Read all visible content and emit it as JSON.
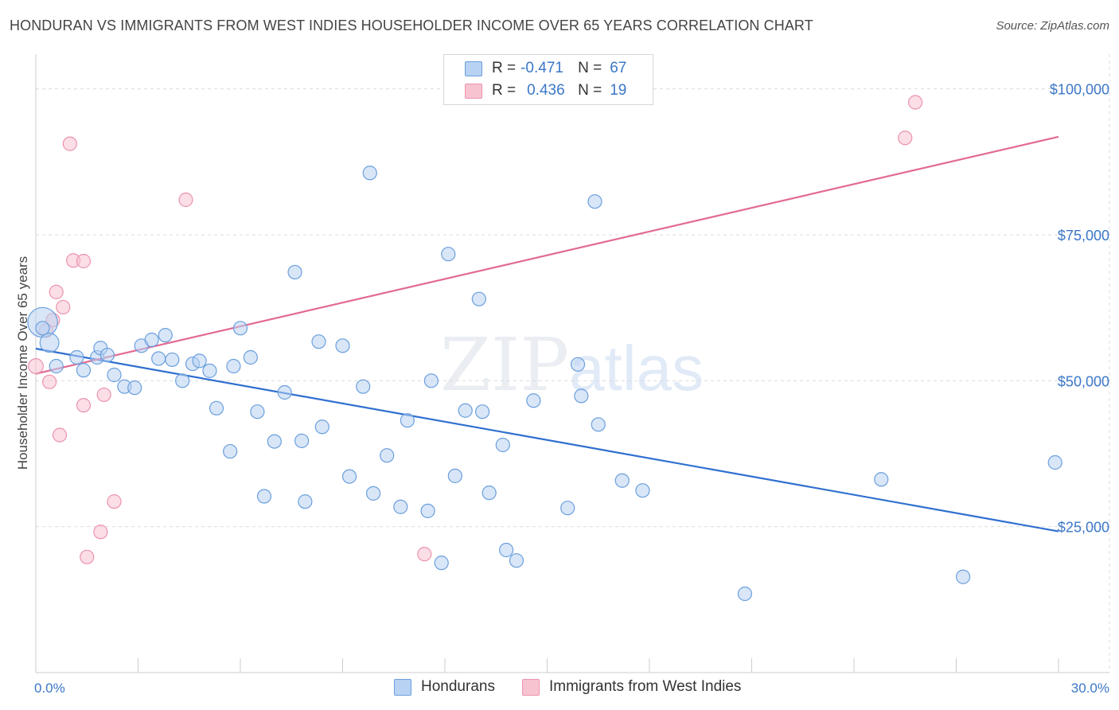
{
  "header": {
    "title": "HONDURAN VS IMMIGRANTS FROM WEST INDIES HOUSEHOLDER INCOME OVER 65 YEARS CORRELATION CHART",
    "source": "Source: ZipAtlas.com"
  },
  "watermark": {
    "zip": "ZIP",
    "atlas": "atlas"
  },
  "legend": {
    "r_label": "R =",
    "n_label": "N =",
    "rows": [
      {
        "r": "-0.471",
        "n": "67"
      },
      {
        "r": "0.436",
        "n": "19"
      }
    ]
  },
  "colors": {
    "hondurans_fill": "#b8d2f3",
    "hondurans_stroke": "#6b9fdc",
    "hondurans_line": "#2f6fd0",
    "westindies_fill": "#f7c3d1",
    "westindies_stroke": "#ec93ae",
    "westindies_line": "#e26a93",
    "tick_text": "#3b77c8"
  },
  "chart_data": {
    "type": "scatter",
    "title": "HONDURAN VS IMMIGRANTS FROM WEST INDIES HOUSEHOLDER INCOME OVER 65 YEARS CORRELATION CHART",
    "xlabel": "",
    "ylabel": "Householder Income Over 65 years",
    "xlim": [
      0,
      30
    ],
    "ylim": [
      0,
      105000
    ],
    "x_tick_labels": {
      "min": "0.0%",
      "max": "30.0%"
    },
    "y_ticks": [
      {
        "value": 25000,
        "label": "$25,000"
      },
      {
        "value": 50000,
        "label": "$50,000"
      },
      {
        "value": 75000,
        "label": "$75,000"
      },
      {
        "value": 100000,
        "label": "$100,000"
      }
    ],
    "grid": true,
    "series": [
      {
        "name": "Hondurans",
        "r": -0.471,
        "n": 67,
        "trend": {
          "x0": 0,
          "y0": 55500,
          "x1": 30,
          "y1": 24200
        },
        "points": [
          [
            0.2,
            60000,
            2.2
          ],
          [
            0.4,
            56500,
            1.4
          ],
          [
            0.6,
            52500,
            1
          ],
          [
            1.2,
            54000,
            1
          ],
          [
            1.4,
            51800,
            1
          ],
          [
            1.8,
            54000,
            1
          ],
          [
            1.9,
            55600,
            1
          ],
          [
            2.1,
            54400,
            1
          ],
          [
            2.3,
            51000,
            1
          ],
          [
            2.6,
            49000,
            1
          ],
          [
            2.9,
            48800,
            1
          ],
          [
            3.1,
            56000,
            1
          ],
          [
            3.4,
            57000,
            1
          ],
          [
            3.6,
            53800,
            1
          ],
          [
            3.8,
            57800,
            1
          ],
          [
            4.0,
            53600,
            1
          ],
          [
            4.3,
            50000,
            1
          ],
          [
            4.6,
            52900,
            1
          ],
          [
            4.8,
            53400,
            1
          ],
          [
            5.1,
            51700,
            1
          ],
          [
            5.3,
            45300,
            1
          ],
          [
            5.7,
            37900,
            1
          ],
          [
            5.8,
            52500,
            1
          ],
          [
            6.0,
            59000,
            1
          ],
          [
            6.3,
            54000,
            1
          ],
          [
            6.5,
            44700,
            1
          ],
          [
            6.7,
            30200,
            1
          ],
          [
            7.0,
            39600,
            1
          ],
          [
            7.3,
            48000,
            1
          ],
          [
            7.6,
            68600,
            1
          ],
          [
            7.8,
            39700,
            1
          ],
          [
            7.9,
            29300,
            1
          ],
          [
            8.3,
            56700,
            1
          ],
          [
            8.4,
            42100,
            1
          ],
          [
            9.0,
            56000,
            1
          ],
          [
            9.2,
            33600,
            1
          ],
          [
            9.6,
            49000,
            1
          ],
          [
            9.8,
            85600,
            1
          ],
          [
            9.9,
            30700,
            1
          ],
          [
            10.3,
            37200,
            1
          ],
          [
            10.7,
            28400,
            1
          ],
          [
            10.9,
            43200,
            1
          ],
          [
            11.5,
            27700,
            1
          ],
          [
            11.6,
            50000,
            1
          ],
          [
            11.9,
            18800,
            1
          ],
          [
            12.1,
            71700,
            1
          ],
          [
            12.3,
            33700,
            1
          ],
          [
            12.6,
            44900,
            1
          ],
          [
            13.0,
            64000,
            1
          ],
          [
            13.1,
            44700,
            1
          ],
          [
            13.3,
            30800,
            1
          ],
          [
            13.7,
            39000,
            1
          ],
          [
            13.8,
            21000,
            1
          ],
          [
            14.1,
            19200,
            1
          ],
          [
            14.6,
            46600,
            1
          ],
          [
            15.6,
            28200,
            1
          ],
          [
            15.9,
            52800,
            1
          ],
          [
            16.0,
            47400,
            1
          ],
          [
            16.4,
            80700,
            1
          ],
          [
            16.5,
            42500,
            1
          ],
          [
            17.2,
            32900,
            1
          ],
          [
            17.8,
            31200,
            1
          ],
          [
            20.8,
            13500,
            1
          ],
          [
            24.8,
            33100,
            1
          ],
          [
            27.2,
            16400,
            1
          ],
          [
            29.9,
            36000,
            1
          ],
          [
            0.2,
            59000,
            1
          ]
        ]
      },
      {
        "name": "Immigrants from West Indies",
        "r": 0.436,
        "n": 19,
        "trend": {
          "x0": 0,
          "y0": 51200,
          "x1": 30,
          "y1": 91800
        },
        "points": [
          [
            0.0,
            52500,
            1.1
          ],
          [
            0.3,
            58600,
            1
          ],
          [
            0.4,
            49800,
            1
          ],
          [
            0.5,
            60400,
            1
          ],
          [
            0.6,
            65200,
            1
          ],
          [
            0.7,
            40700,
            1
          ],
          [
            0.8,
            62600,
            1
          ],
          [
            1.0,
            90600,
            1
          ],
          [
            1.1,
            70600,
            1
          ],
          [
            1.4,
            70500,
            1
          ],
          [
            1.4,
            45800,
            1
          ],
          [
            1.5,
            19800,
            1
          ],
          [
            1.9,
            24100,
            1
          ],
          [
            2.0,
            47600,
            1
          ],
          [
            2.3,
            29300,
            1
          ],
          [
            4.4,
            81000,
            1
          ],
          [
            11.4,
            20300,
            1
          ],
          [
            25.5,
            91600,
            1
          ],
          [
            25.8,
            97700,
            1
          ]
        ]
      }
    ]
  },
  "bottom_legend": {
    "items": [
      {
        "label": "Hondurans"
      },
      {
        "label": "Immigrants from West Indies"
      }
    ]
  }
}
